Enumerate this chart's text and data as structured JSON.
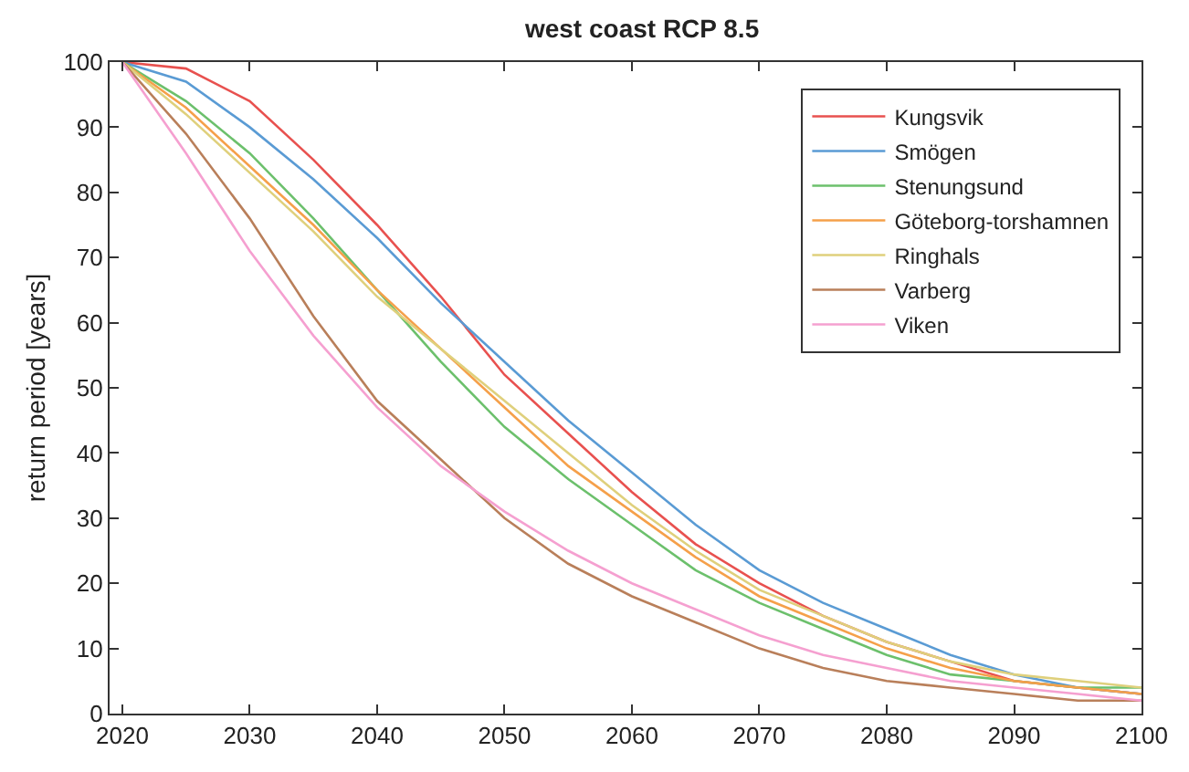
{
  "chart_data": {
    "type": "line",
    "title": "west coast RCP 8.5",
    "ylabel": "return period [years]",
    "x": [
      2020,
      2025,
      2030,
      2035,
      2040,
      2045,
      2050,
      2055,
      2060,
      2065,
      2070,
      2075,
      2080,
      2085,
      2090,
      2095,
      2100
    ],
    "xlim": [
      2019,
      2100
    ],
    "xticks": [
      2020,
      2030,
      2040,
      2050,
      2060,
      2070,
      2080,
      2090,
      2100
    ],
    "ylim": [
      0,
      100
    ],
    "yticks": [
      0,
      10,
      20,
      30,
      40,
      50,
      60,
      70,
      80,
      90,
      100
    ],
    "legend": "top right",
    "marker": "none",
    "line_style": "solid",
    "series": [
      {
        "name": "Kungsvik",
        "color": "#e8514f",
        "values": [
          100,
          99,
          94,
          85,
          75,
          64,
          52,
          43,
          34,
          26,
          20,
          15,
          11,
          8,
          5,
          4,
          3
        ]
      },
      {
        "name": "Smögen",
        "color": "#5a9bd4",
        "values": [
          100,
          97,
          90,
          82,
          73,
          63,
          54,
          45,
          37,
          29,
          22,
          17,
          13,
          9,
          6,
          4,
          3
        ]
      },
      {
        "name": "Stenungsund",
        "color": "#6cc06c",
        "values": [
          100,
          94,
          86,
          76,
          65,
          54,
          44,
          36,
          29,
          22,
          17,
          13,
          9,
          6,
          5,
          4,
          4
        ]
      },
      {
        "name": "Göteborg-torshamnen",
        "color": "#f5a04a",
        "values": [
          100,
          93,
          84,
          75,
          65,
          56,
          47,
          38,
          31,
          24,
          18,
          14,
          10,
          7,
          5,
          4,
          3
        ]
      },
      {
        "name": "Ringhals",
        "color": "#dfd07c",
        "values": [
          100,
          92,
          83,
          74,
          64,
          56,
          48,
          40,
          32,
          25,
          19,
          15,
          11,
          8,
          6,
          5,
          4
        ]
      },
      {
        "name": "Varberg",
        "color": "#b97f5a",
        "values": [
          100,
          89,
          76,
          61,
          48,
          39,
          30,
          23,
          18,
          14,
          10,
          7,
          5,
          4,
          3,
          2,
          2
        ]
      },
      {
        "name": "Viken",
        "color": "#f5a0d0",
        "values": [
          100,
          86,
          71,
          58,
          47,
          38,
          31,
          25,
          20,
          16,
          12,
          9,
          7,
          5,
          4,
          3,
          2
        ]
      }
    ]
  }
}
